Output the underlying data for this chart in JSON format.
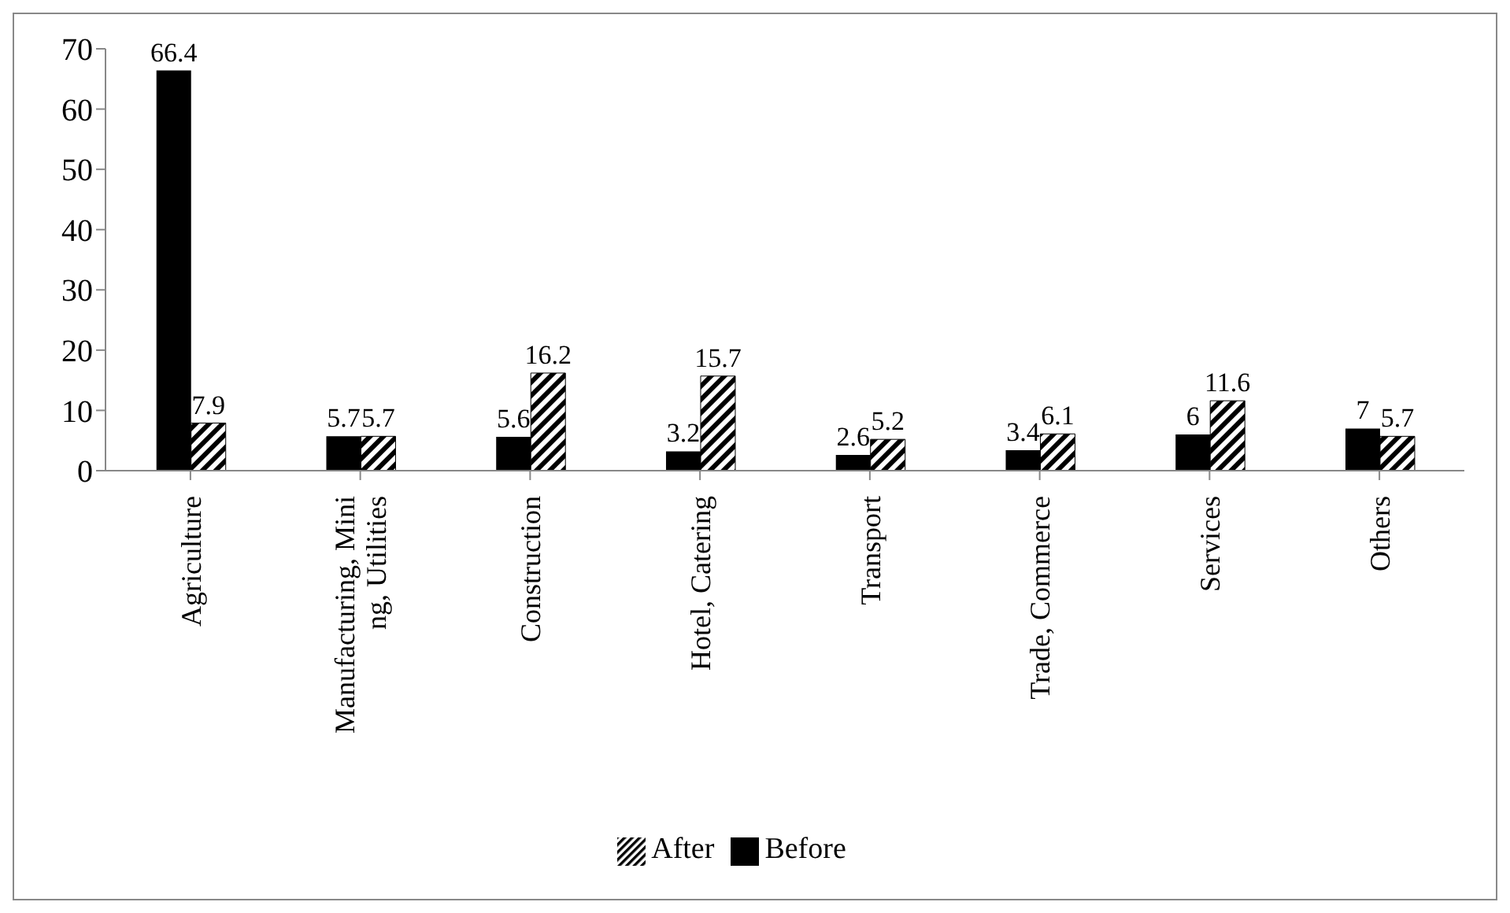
{
  "chart_data": {
    "type": "bar",
    "categories": [
      "Agriculture",
      "Manufacturing, Mining, Utilities",
      "Construction",
      "Hotel, Catering",
      "Transport",
      "Trade, Commerce",
      "Services",
      "Others"
    ],
    "series": [
      {
        "name": "Before",
        "color": "#000000",
        "values": [
          66.4,
          5.7,
          5.6,
          3.2,
          2.6,
          3.4,
          6,
          7
        ]
      },
      {
        "name": "After",
        "color": "#000000",
        "values": [
          7.9,
          5.7,
          16.2,
          15.7,
          5.2,
          6.1,
          11.6,
          5.7
        ]
      }
    ],
    "ylim": [
      0,
      70
    ],
    "yticks": [
      0,
      10,
      20,
      30,
      40,
      50,
      60,
      70
    ],
    "grid": false,
    "legend": "bottom",
    "data_labels": true
  }
}
